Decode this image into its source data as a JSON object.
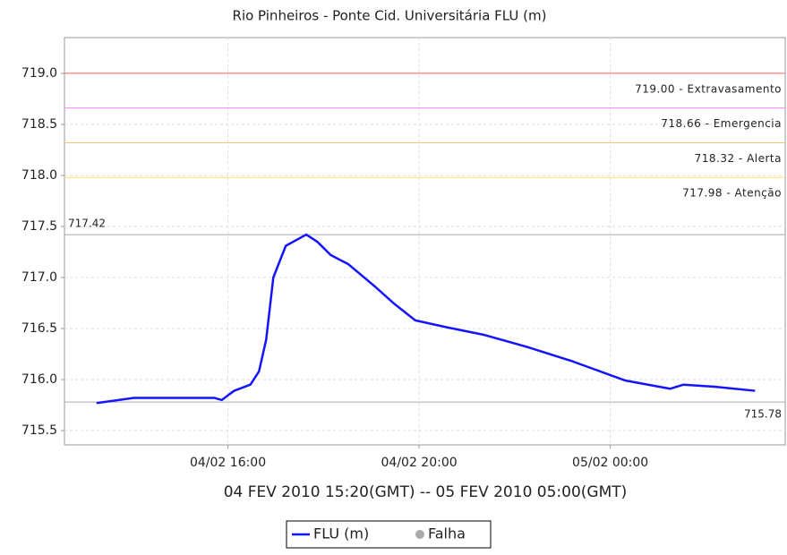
{
  "chart_data": {
    "type": "line",
    "title": "Rio Pinheiros - Ponte Cid. Universitária FLU (m)",
    "x_label": "04 FEV 2010 15:20(GMT) -- 05 FEV 2010 05:00(GMT)",
    "xlim": [
      12.58,
      27.66
    ],
    "xticks": [
      {
        "value": 16,
        "label": "04/02 16:00"
      },
      {
        "value": 20,
        "label": "04/02 20:00"
      },
      {
        "value": 24,
        "label": "05/02 00:00"
      }
    ],
    "ylim": [
      715.36,
      719.35
    ],
    "yticks": [
      715.5,
      {
        "value": 716,
        "label": "716.0"
      },
      716.5,
      {
        "value": 717,
        "label": "717.0"
      },
      717.5,
      {
        "value": 718,
        "label": "718.0"
      },
      718.5,
      {
        "value": 719,
        "label": "719.0"
      }
    ],
    "grid": true,
    "series": [
      {
        "name": "FLU (m)",
        "color": "#1414ff",
        "x": [
          13.25,
          14.03,
          14.97,
          15.72,
          15.87,
          16.13,
          16.47,
          16.65,
          16.8,
          16.95,
          17.21,
          17.64,
          17.87,
          18.15,
          18.52,
          18.8,
          19.08,
          19.46,
          19.92,
          20.6,
          21.34,
          22.26,
          23.2,
          24.32,
          25.25,
          25.53,
          26.18,
          27.03
        ],
        "values": [
          715.77,
          715.82,
          715.82,
          715.82,
          715.8,
          715.89,
          715.95,
          716.08,
          716.39,
          717.0,
          717.31,
          717.42,
          717.35,
          717.22,
          717.13,
          717.02,
          716.91,
          716.75,
          716.58,
          716.51,
          716.44,
          716.32,
          716.18,
          715.99,
          715.91,
          715.95,
          715.93,
          715.89
        ]
      }
    ],
    "extra_legend": {
      "name": "Falha",
      "color": "#aaaaaa"
    },
    "thresholds": [
      {
        "value": 719.0,
        "label": "719.00 - Extravasamento",
        "color": "#ff6060"
      },
      {
        "value": 718.66,
        "label": "718.66 - Emergencia",
        "color": "#ff80ff"
      },
      {
        "value": 718.32,
        "label": "718.32 - Alerta",
        "color": "#ffc080"
      },
      {
        "value": 717.98,
        "label": "717.98 - Atenção",
        "color": "#ffe070"
      }
    ],
    "max_line": {
      "value": 717.42,
      "label": "717.42",
      "color": "#aaaaaa"
    },
    "min_line": {
      "value": 715.78,
      "label": "715.78",
      "color": "#aaaaaa"
    }
  }
}
